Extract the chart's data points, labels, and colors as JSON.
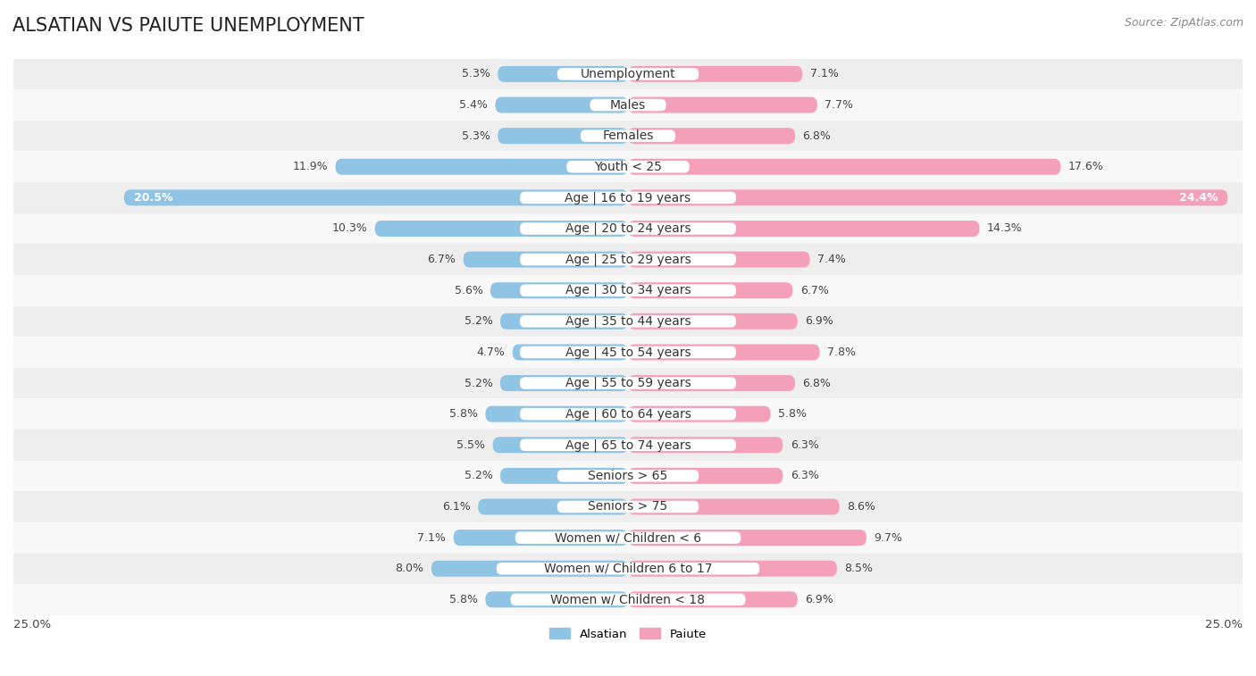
{
  "title": "ALSATIAN VS PAIUTE UNEMPLOYMENT",
  "source": "Source: ZipAtlas.com",
  "categories": [
    "Unemployment",
    "Males",
    "Females",
    "Youth < 25",
    "Age | 16 to 19 years",
    "Age | 20 to 24 years",
    "Age | 25 to 29 years",
    "Age | 30 to 34 years",
    "Age | 35 to 44 years",
    "Age | 45 to 54 years",
    "Age | 55 to 59 years",
    "Age | 60 to 64 years",
    "Age | 65 to 74 years",
    "Seniors > 65",
    "Seniors > 75",
    "Women w/ Children < 6",
    "Women w/ Children 6 to 17",
    "Women w/ Children < 18"
  ],
  "alsatian": [
    5.3,
    5.4,
    5.3,
    11.9,
    20.5,
    10.3,
    6.7,
    5.6,
    5.2,
    4.7,
    5.2,
    5.8,
    5.5,
    5.2,
    6.1,
    7.1,
    8.0,
    5.8
  ],
  "paiute": [
    7.1,
    7.7,
    6.8,
    17.6,
    24.4,
    14.3,
    7.4,
    6.7,
    6.9,
    7.8,
    6.8,
    5.8,
    6.3,
    6.3,
    8.6,
    9.7,
    8.5,
    6.9
  ],
  "alsatian_color": "#90c4e4",
  "paiute_color": "#f4a0bb",
  "row_bg_odd": "#eeeeee",
  "row_bg_even": "#f8f8f8",
  "xlim": 25.0,
  "legend_alsatian": "Alsatian",
  "legend_paiute": "Paiute",
  "title_fontsize": 15,
  "source_fontsize": 9,
  "label_fontsize": 9.5,
  "category_fontsize": 10,
  "value_fontsize": 9
}
